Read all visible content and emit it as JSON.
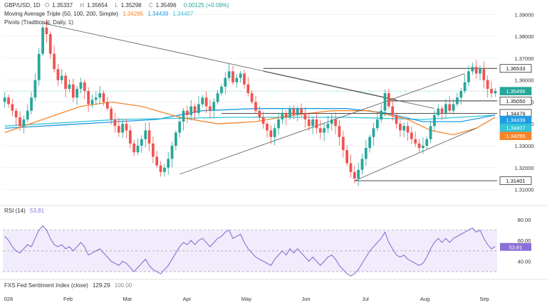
{
  "header": {
    "symbol_line": "GBP/USD, 1D",
    "ohlc": [
      {
        "k": "O",
        "v": "1.35337"
      },
      {
        "k": "H",
        "v": "1.35654"
      },
      {
        "k": "L",
        "v": "1.35298"
      },
      {
        "k": "C",
        "v": "1.35496"
      },
      {
        "k": "chg",
        "v": "0.00125 (+0.09%)"
      }
    ],
    "ma_label": "Moving Average Triple (50, 100, 200, Simple)",
    "ma_values": [
      "1.34295",
      "1.34439",
      "1.34407"
    ],
    "pivots_label": "Pivots (Traditional, Daily, 1)"
  },
  "rsi_pane": {
    "label": "RSI (14)",
    "value": "53.81"
  },
  "sentiment_pane": {
    "label": "FXS Fed Sentiment Index (close)",
    "value1": "129.29",
    "value2": "100.00"
  },
  "colors": {
    "up": "#26a69a",
    "down": "#ef5350",
    "ma50": "#f5862b",
    "ma100": "#1e9be5",
    "ma200": "#33c4d8",
    "rsi": "#8b6fd6",
    "trend": "#555555"
  },
  "chart_data": {
    "type": "candlestick",
    "price_axis": {
      "ticks": [
        1.31,
        1.32,
        1.33,
        1.34,
        1.35,
        1.36,
        1.37,
        1.38,
        1.39
      ],
      "labels": [
        "1.31000",
        "1.32000",
        "1.33000",
        "1.34000",
        "1.35000",
        "1.36000",
        "1.37000",
        "1.38000",
        "1.39000"
      ],
      "range": [
        1.304,
        1.394
      ]
    },
    "price_labels": [
      {
        "value": 1.36533,
        "text": "1.36533",
        "kind": "pivot"
      },
      {
        "value": 1.35496,
        "text": "1.35496",
        "kind": "last"
      },
      {
        "value": 1.3505,
        "text": "1.35050",
        "kind": "pivot"
      },
      {
        "value": 1.34479,
        "text": "1.34479",
        "kind": "pivot"
      },
      {
        "value": 1.34439,
        "text": "1.34439",
        "kind": "ma100"
      },
      {
        "value": 1.34407,
        "text": "1.34407",
        "kind": "ma200"
      },
      {
        "value": 1.34295,
        "text": "1.34295",
        "kind": "ma50"
      },
      {
        "value": 1.31401,
        "text": "1.31401",
        "kind": "pivot"
      }
    ],
    "months": [
      "026",
      "Feb",
      "Mar",
      "Apr",
      "May",
      "Jun",
      "Jul",
      "Aug",
      "Sep"
    ],
    "close_path": [
      1.352,
      1.349,
      1.346,
      1.343,
      1.339,
      1.342,
      1.346,
      1.352,
      1.36,
      1.372,
      1.384,
      1.381,
      1.372,
      1.365,
      1.36,
      1.362,
      1.356,
      1.358,
      1.352,
      1.356,
      1.359,
      1.355,
      1.349,
      1.351,
      1.352,
      1.354,
      1.35,
      1.347,
      1.342,
      1.339,
      1.336,
      1.34,
      1.337,
      1.331,
      1.327,
      1.33,
      1.333,
      1.337,
      1.331,
      1.325,
      1.321,
      1.318,
      1.32,
      1.324,
      1.33,
      1.336,
      1.341,
      1.346,
      1.344,
      1.348,
      1.345,
      1.349,
      1.352,
      1.348,
      1.346,
      1.35,
      1.354,
      1.357,
      1.361,
      1.364,
      1.359,
      1.361,
      1.363,
      1.358,
      1.354,
      1.35,
      1.346,
      1.343,
      1.34,
      1.337,
      1.334,
      1.338,
      1.342,
      1.345,
      1.343,
      1.347,
      1.344,
      1.347,
      1.345,
      1.342,
      1.339,
      1.342,
      1.338,
      1.336,
      1.338,
      1.34,
      1.342,
      1.339,
      1.334,
      1.328,
      1.322,
      1.318,
      1.315,
      1.319,
      1.324,
      1.329,
      1.334,
      1.338,
      1.342,
      1.346,
      1.354,
      1.348,
      1.344,
      1.34,
      1.337,
      1.339,
      1.336,
      1.333,
      1.331,
      1.329,
      1.33,
      1.333,
      1.339,
      1.344,
      1.347,
      1.345,
      1.349,
      1.346,
      1.349,
      1.352,
      1.355,
      1.359,
      1.364,
      1.366,
      1.363,
      1.365,
      1.36,
      1.356,
      1.354,
      1.355
    ],
    "ma50": [
      [
        0,
        1.336
      ],
      [
        10,
        1.342
      ],
      [
        20,
        1.348
      ],
      [
        28,
        1.35
      ],
      [
        36,
        1.348
      ],
      [
        46,
        1.343
      ],
      [
        56,
        1.34
      ],
      [
        66,
        1.341
      ],
      [
        76,
        1.344
      ],
      [
        86,
        1.346
      ],
      [
        96,
        1.346
      ],
      [
        106,
        1.342
      ],
      [
        112,
        1.337
      ],
      [
        118,
        1.335
      ],
      [
        124,
        1.338
      ],
      [
        129,
        1.343
      ]
    ],
    "ma100": [
      [
        0,
        1.338
      ],
      [
        20,
        1.34
      ],
      [
        40,
        1.342
      ],
      [
        52,
        1.346
      ],
      [
        66,
        1.347
      ],
      [
        80,
        1.347
      ],
      [
        90,
        1.347
      ],
      [
        100,
        1.345
      ],
      [
        110,
        1.341
      ],
      [
        120,
        1.341
      ],
      [
        129,
        1.344
      ]
    ],
    "ma200": [
      [
        0,
        1.339
      ],
      [
        30,
        1.342
      ],
      [
        60,
        1.343
      ],
      [
        90,
        1.343
      ],
      [
        110,
        1.342
      ],
      [
        129,
        1.344
      ]
    ],
    "pivot_lines": [
      {
        "value": 1.36533,
        "from": 68,
        "to": 129
      },
      {
        "value": 1.3505,
        "from": 101,
        "to": 129
      },
      {
        "value": 1.34479,
        "from": 57,
        "to": 129
      },
      {
        "value": 1.31401,
        "from": 92,
        "to": 129
      }
    ],
    "trend_lines": [
      [
        [
          10,
          1.386
        ],
        [
          103,
          1.351
        ]
      ],
      [
        [
          46,
          1.317
        ],
        [
          121,
          1.363
        ]
      ],
      [
        [
          68,
          1.364
        ],
        [
          113,
          1.347
        ]
      ],
      [
        [
          92,
          1.314
        ],
        [
          124,
          1.338
        ]
      ]
    ],
    "rsi": {
      "levels": [
        70,
        50,
        30
      ],
      "ticks": [
        40,
        60,
        80
      ],
      "labels": [
        "40.00",
        "60.00",
        "80.00"
      ],
      "range": [
        26,
        82
      ],
      "values": [
        64,
        60,
        54,
        50,
        48,
        52,
        56,
        54,
        62,
        70,
        74,
        70,
        62,
        56,
        54,
        56,
        52,
        54,
        50,
        54,
        58,
        54,
        46,
        48,
        50,
        52,
        48,
        44,
        40,
        38,
        36,
        40,
        38,
        34,
        30,
        34,
        38,
        42,
        36,
        32,
        30,
        28,
        32,
        36,
        42,
        48,
        54,
        58,
        56,
        60,
        56,
        60,
        62,
        58,
        54,
        58,
        62,
        64,
        68,
        70,
        62,
        64,
        66,
        58,
        52,
        48,
        44,
        42,
        40,
        38,
        36,
        42,
        46,
        50,
        46,
        52,
        48,
        52,
        48,
        44,
        40,
        44,
        40,
        36,
        40,
        44,
        46,
        42,
        36,
        32,
        28,
        26,
        28,
        32,
        38,
        44,
        50,
        54,
        58,
        62,
        68,
        58,
        52,
        46,
        44,
        46,
        42,
        40,
        38,
        36,
        38,
        44,
        52,
        58,
        62,
        58,
        62,
        58,
        62,
        64,
        66,
        68,
        70,
        72,
        68,
        70,
        62,
        56,
        52,
        54
      ]
    }
  }
}
